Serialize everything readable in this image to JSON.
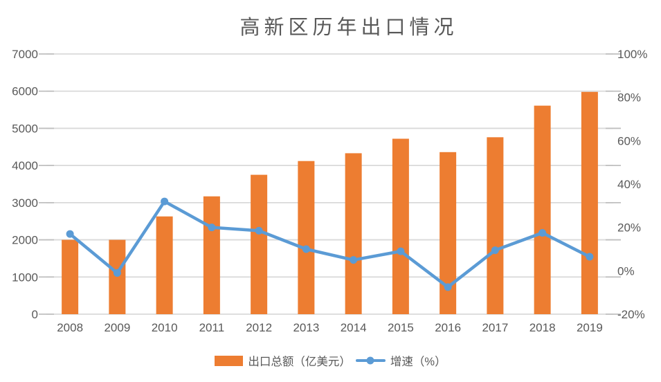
{
  "colors": {
    "bar": "#ED7D31",
    "line": "#5B9BD5",
    "grid": "#D9D9D9",
    "tick": "#BFBFBF",
    "text": "#595959",
    "title": "#595959",
    "background": "#FFFFFF"
  },
  "chart_data": {
    "type": "bar+line",
    "title": "高新区历年出口情况",
    "categories": [
      "2008",
      "2009",
      "2010",
      "2011",
      "2012",
      "2013",
      "2014",
      "2015",
      "2016",
      "2017",
      "2018",
      "2019"
    ],
    "series": [
      {
        "name": "出口总额（亿美元）",
        "type": "bar",
        "axis": "left",
        "color": "#ED7D31",
        "values": [
          2000,
          2000,
          2630,
          3170,
          3750,
          4120,
          4330,
          4720,
          4360,
          4760,
          5610,
          5980
        ]
      },
      {
        "name": "增速（%）",
        "type": "line",
        "axis": "right",
        "color": "#5B9BD5",
        "values": [
          17,
          -1,
          32,
          20,
          18.5,
          10,
          5,
          9,
          -7.5,
          9.5,
          17.5,
          6.5
        ]
      }
    ],
    "left_axis": {
      "min": 0,
      "max": 7000,
      "step": 1000,
      "tick_labels": [
        "0",
        "1000",
        "2000",
        "3000",
        "4000",
        "5000",
        "6000",
        "7000"
      ]
    },
    "right_axis": {
      "min": -20,
      "max": 100,
      "step": 20,
      "tick_labels": [
        "-20%",
        "0%",
        "20%",
        "40%",
        "60%",
        "80%",
        "100%"
      ]
    },
    "legend_position": "bottom",
    "grid": true
  }
}
